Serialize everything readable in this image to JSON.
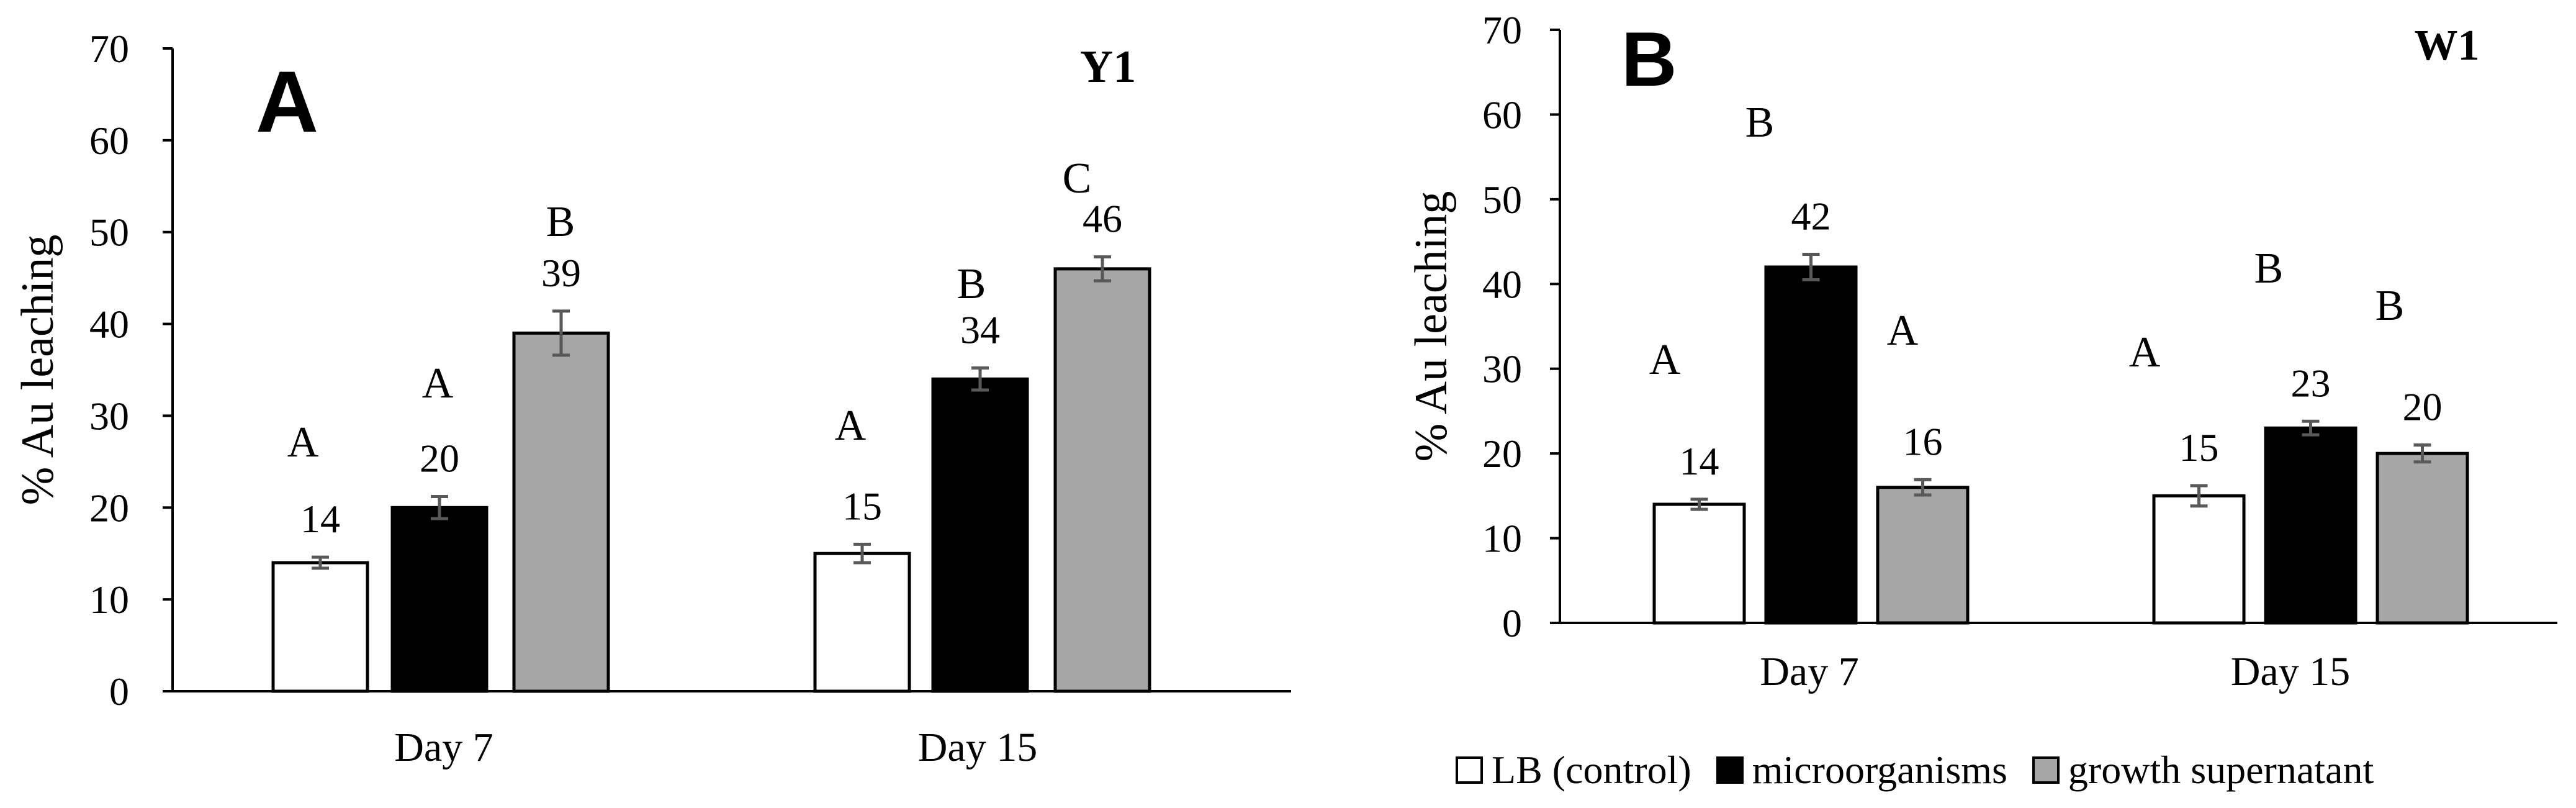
{
  "chart_data": [
    {
      "type": "bar",
      "panel_label": "A",
      "title": "Y1",
      "ylabel": "% Au leaching",
      "ylim": [
        0,
        70
      ],
      "yticks": [
        0,
        10,
        20,
        30,
        40,
        50,
        60,
        70
      ],
      "categories": [
        "Day 7",
        "Day 15"
      ],
      "series": [
        {
          "name": "LB (control)",
          "values": [
            14,
            15
          ],
          "errors": [
            0.6,
            1.0
          ],
          "value_labels": [
            "14",
            "15"
          ],
          "letters": [
            "A",
            "A"
          ]
        },
        {
          "name": "microorganisms",
          "values": [
            20,
            34
          ],
          "errors": [
            1.2,
            1.2
          ],
          "value_labels": [
            "20",
            "34"
          ],
          "letters": [
            "A",
            "B"
          ]
        },
        {
          "name": "growth supernatant",
          "values": [
            39,
            46
          ],
          "errors": [
            2.4,
            1.3
          ],
          "value_labels": [
            "39",
            "46"
          ],
          "letters": [
            "B",
            "C"
          ]
        }
      ]
    },
    {
      "type": "bar",
      "panel_label": "B",
      "title": "W1",
      "ylabel": "% Au leaching",
      "ylim": [
        0,
        70
      ],
      "yticks": [
        0,
        10,
        20,
        30,
        40,
        50,
        60,
        70
      ],
      "categories": [
        "Day 7",
        "Day 15"
      ],
      "series": [
        {
          "name": "LB (control)",
          "values": [
            14,
            15
          ],
          "errors": [
            0.6,
            1.2
          ],
          "value_labels": [
            "14",
            "15"
          ],
          "letters": [
            "A",
            "A"
          ]
        },
        {
          "name": "microorganisms",
          "values": [
            42,
            23
          ],
          "errors": [
            1.5,
            0.8
          ],
          "value_labels": [
            "42",
            "23"
          ],
          "letters": [
            "B",
            "B"
          ]
        },
        {
          "name": "growth supernatant",
          "values": [
            16,
            20
          ],
          "errors": [
            0.9,
            1.0
          ],
          "value_labels": [
            "16",
            "20"
          ],
          "letters": [
            "A",
            "B"
          ]
        }
      ]
    }
  ],
  "legend": {
    "items": [
      {
        "label": "LB (control)",
        "color": "#ffffff"
      },
      {
        "label": "microorganisms",
        "color": "#000000"
      },
      {
        "label": "growth supernatant",
        "color": "#a6a6a6"
      }
    ]
  },
  "colors": {
    "control": "#ffffff",
    "micro": "#000000",
    "supernatant": "#a6a6a6",
    "error_bar": "#595959"
  }
}
